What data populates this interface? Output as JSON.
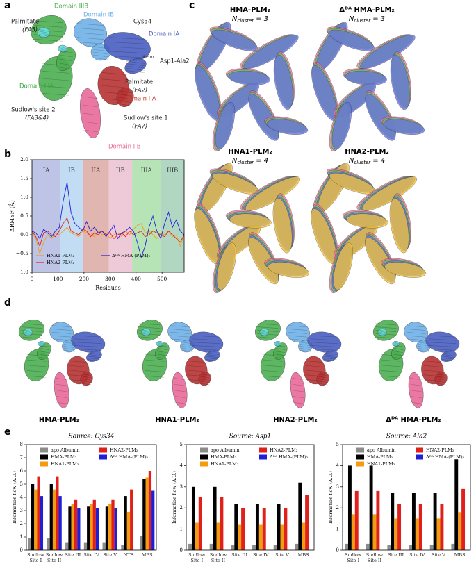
{
  "figure": {
    "letters": [
      "a",
      "b",
      "c",
      "d",
      "e"
    ],
    "panel_a_labels": [
      {
        "text": "Domain IIIB",
        "color": "#4caf50"
      },
      {
        "text": "Domain IB",
        "color": "#6fb1e8"
      },
      {
        "text": "Cys34",
        "color": "#222222"
      },
      {
        "text": "Domain IA",
        "color": "#4a5fc1"
      },
      {
        "text": "Palmitate",
        "color": "#222222"
      },
      {
        "text": "(FA5)",
        "color": "#222222"
      },
      {
        "text": "Domain IIIA",
        "color": "#3aa53a"
      },
      {
        "text": "Asp1-Ala2",
        "color": "#222222"
      },
      {
        "text": "Nterm",
        "color": "#222222"
      },
      {
        "text": "Palmitate",
        "color": "#222222"
      },
      {
        "text": "(FA2)",
        "color": "#222222"
      },
      {
        "text": "Domain IIA",
        "color": "#c0392b"
      },
      {
        "text": "Sudlow's site 2",
        "color": "#222222"
      },
      {
        "text": "(FA3&4)",
        "color": "#222222"
      },
      {
        "text": "Sudlow's site 1",
        "color": "#222222"
      },
      {
        "text": "(FA7)",
        "color": "#222222"
      },
      {
        "text": "Domain IIB",
        "color": "#e86a9a"
      }
    ],
    "panel_c_structures": [
      {
        "title": "HMA-PLM₂",
        "symbol": "N",
        "subscript": "cluster",
        "equals": "= 3"
      },
      {
        "title": "Δᴰᴬ HMA-PLM₂",
        "symbol": "N",
        "subscript": "cluster",
        "equals": "= 3"
      },
      {
        "title": "HNA1-PLM₂",
        "symbol": "N",
        "subscript": "cluster",
        "equals": "= 4"
      },
      {
        "title": "HNA2-PLM₂",
        "symbol": "N",
        "subscript": "cluster",
        "equals": "= 4"
      }
    ],
    "panel_d_labels": [
      "HMA-PLM₂",
      "HNA1-PLM₂",
      "HNA2-PLM₂",
      "Δᴰᴬ HMA-PLM₂"
    ]
  },
  "chart_data": [
    {
      "type": "line",
      "ylabel": "ΔRMSF (Å)",
      "xlabel": "Residues",
      "x": [
        0,
        15,
        30,
        45,
        60,
        75,
        90,
        105,
        120,
        135,
        150,
        165,
        180,
        195,
        210,
        225,
        240,
        255,
        270,
        285,
        300,
        315,
        330,
        345,
        360,
        375,
        390,
        405,
        420,
        435,
        450,
        465,
        480,
        495,
        510,
        525,
        540,
        555,
        570,
        585
      ],
      "series": [
        {
          "name": "HNA1-PLM₂",
          "color": "#f39c12",
          "values": [
            0.05,
            -0.1,
            -0.5,
            -0.2,
            0.0,
            -0.1,
            0.05,
            0.0,
            0.1,
            0.2,
            0.05,
            0.0,
            -0.05,
            0.1,
            0.05,
            0.0,
            -0.05,
            0.1,
            0.0,
            0.05,
            -0.1,
            0.0,
            0.05,
            -0.05,
            0.1,
            0.0,
            0.15,
            0.25,
            0.3,
            0.05,
            0.1,
            0.0,
            -0.1,
            0.05,
            0.0,
            0.1,
            -0.05,
            0.0,
            -0.3,
            0.0
          ]
        },
        {
          "name": "HNA2-PLM₂",
          "color": "#e0201b",
          "values": [
            0.1,
            -0.05,
            -0.3,
            0.05,
            0.1,
            0.0,
            -0.05,
            0.1,
            0.3,
            0.45,
            0.1,
            0.05,
            0.0,
            0.15,
            0.1,
            -0.05,
            0.05,
            0.0,
            0.1,
            0.0,
            0.05,
            -0.1,
            0.0,
            0.05,
            -0.05,
            0.1,
            0.0,
            0.05,
            0.1,
            -0.05,
            0.0,
            0.1,
            0.05,
            0.0,
            -0.05,
            0.1,
            0.0,
            -0.1,
            -0.2,
            0.0
          ]
        },
        {
          "name": "Δᴰᴬ HMA-(PLM)₂",
          "color": "#1f1fd6",
          "values": [
            0.1,
            0.05,
            -0.1,
            0.15,
            0.05,
            -0.05,
            0.1,
            0.2,
            0.9,
            1.4,
            0.6,
            0.3,
            0.2,
            0.1,
            0.35,
            0.1,
            0.2,
            0.05,
            0.1,
            -0.05,
            0.1,
            0.25,
            -0.1,
            0.05,
            0.1,
            0.2,
            0.1,
            -0.2,
            -0.6,
            -0.3,
            0.2,
            0.5,
            0.1,
            -0.1,
            0.3,
            0.6,
            0.2,
            0.4,
            0.1,
            0.0
          ]
        }
      ],
      "regions": [
        {
          "label": "IA",
          "start": 0,
          "end": 110,
          "color": "#5c6bc0"
        },
        {
          "label": "IB",
          "start": 110,
          "end": 195,
          "color": "#64a8e0"
        },
        {
          "label": "IIA",
          "start": 195,
          "end": 295,
          "color": "#b5473a"
        },
        {
          "label": "IIB",
          "start": 295,
          "end": 385,
          "color": "#d47ba0"
        },
        {
          "label": "IIIA",
          "start": 385,
          "end": 495,
          "color": "#4cbb4c"
        },
        {
          "label": "IIIB",
          "start": 495,
          "end": 585,
          "color": "#3c9a6a"
        }
      ],
      "xlim": [
        0,
        585
      ],
      "ylim": [
        -1,
        2
      ],
      "xticks": [
        0,
        100,
        200,
        300,
        400,
        500
      ],
      "yticks": [
        {
          "value": -1,
          "label": "−1.0"
        },
        {
          "value": -0.5,
          "label": "−0.5"
        },
        {
          "value": 0,
          "label": "0.0"
        },
        {
          "value": 0.5,
          "label": "0.5"
        },
        {
          "value": 1,
          "label": "1.0"
        },
        {
          "value": 1.5,
          "label": "1.5"
        },
        {
          "value": 2,
          "label": "2.0"
        }
      ],
      "legend": "lower left"
    },
    {
      "type": "bar",
      "title": "Source: Cys34",
      "ylabel": "Information flow (A.U.)",
      "categories": [
        "Sudlow Site I",
        "Sudlow Site II",
        "Site III",
        "Site IV",
        "Site V",
        "NTS",
        "MBS"
      ],
      "series": [
        {
          "name": "apo Albumin",
          "color": "#8c8c8c",
          "values": [
            0.9,
            0.9,
            0.6,
            0.6,
            0.6,
            0.4,
            1.1
          ]
        },
        {
          "name": "HMA-PLM₂",
          "color": "#000000",
          "values": [
            5.0,
            5.0,
            3.3,
            3.3,
            3.3,
            4.1,
            5.4
          ]
        },
        {
          "name": "HNA1-PLM₂",
          "color": "#f39c12",
          "values": [
            4.6,
            4.6,
            3.5,
            3.5,
            3.5,
            2.9,
            5.5
          ]
        },
        {
          "name": "HNA2-PLM₂",
          "color": "#e0201b",
          "values": [
            5.6,
            5.6,
            3.8,
            3.8,
            3.8,
            4.6,
            6.0
          ]
        },
        {
          "name": "Δᴰᴬ HMA-(PLM)₂",
          "color": "#1f1fd6",
          "values": [
            4.1,
            4.1,
            3.2,
            3.2,
            3.2,
            null,
            4.5
          ]
        }
      ],
      "ylim": [
        0,
        8
      ],
      "yticks": [
        0,
        1,
        2,
        3,
        4,
        5,
        6,
        7,
        8
      ]
    },
    {
      "type": "bar",
      "title": "Source: Asp1",
      "ylabel": "Information flow (A.U.)",
      "categories": [
        "Sudlow Site I",
        "Sudlow Site II",
        "Site III",
        "Site IV",
        "Site V",
        "MBS"
      ],
      "series": [
        {
          "name": "apo Albumin",
          "color": "#8c8c8c",
          "values": [
            0.3,
            0.3,
            0.25,
            0.25,
            0.25,
            0.3
          ]
        },
        {
          "name": "HMA-PLM₂",
          "color": "#000000",
          "values": [
            3.0,
            3.0,
            2.2,
            2.2,
            2.2,
            3.2
          ]
        },
        {
          "name": "HNA1-PLM₂",
          "color": "#f39c12",
          "values": [
            1.3,
            1.3,
            1.2,
            1.2,
            1.2,
            1.3
          ]
        },
        {
          "name": "HNA2-PLM₂",
          "color": "#e0201b",
          "values": [
            2.5,
            2.5,
            2.0,
            2.0,
            2.0,
            2.6
          ]
        },
        {
          "name": "Δᴰᴬ HMA-(PLM)₂",
          "color": "#1f1fd6",
          "values": [
            null,
            null,
            null,
            null,
            null,
            null
          ]
        }
      ],
      "ylim": [
        0,
        5
      ],
      "yticks": [
        0,
        1,
        2,
        3,
        4,
        5
      ]
    },
    {
      "type": "bar",
      "title": "Source: Ala2",
      "ylabel": "Information flow (A.U.)",
      "categories": [
        "Sudlow Site I",
        "Sudlow Site II",
        "Site III",
        "Site IV",
        "Site V",
        "MBS"
      ],
      "series": [
        {
          "name": "apo Albumin",
          "color": "#8c8c8c",
          "values": [
            0.3,
            0.3,
            0.25,
            0.25,
            0.25,
            0.3
          ]
        },
        {
          "name": "HMA-PLM₂",
          "color": "#000000",
          "values": [
            4.0,
            4.0,
            2.7,
            2.7,
            2.7,
            4.3
          ]
        },
        {
          "name": "HNA1-PLM₂",
          "color": "#f39c12",
          "values": [
            1.7,
            1.7,
            1.5,
            1.5,
            1.5,
            1.8
          ]
        },
        {
          "name": "HNA2-PLM₂",
          "color": "#e0201b",
          "values": [
            2.8,
            2.8,
            2.2,
            2.2,
            2.2,
            2.9
          ]
        },
        {
          "name": "Δᴰᴬ HMA-(PLM)₂",
          "color": "#1f1fd6",
          "values": [
            null,
            null,
            null,
            null,
            null,
            null
          ]
        }
      ],
      "ylim": [
        0,
        5
      ],
      "yticks": [
        0,
        1,
        2,
        3,
        4,
        5
      ]
    }
  ]
}
